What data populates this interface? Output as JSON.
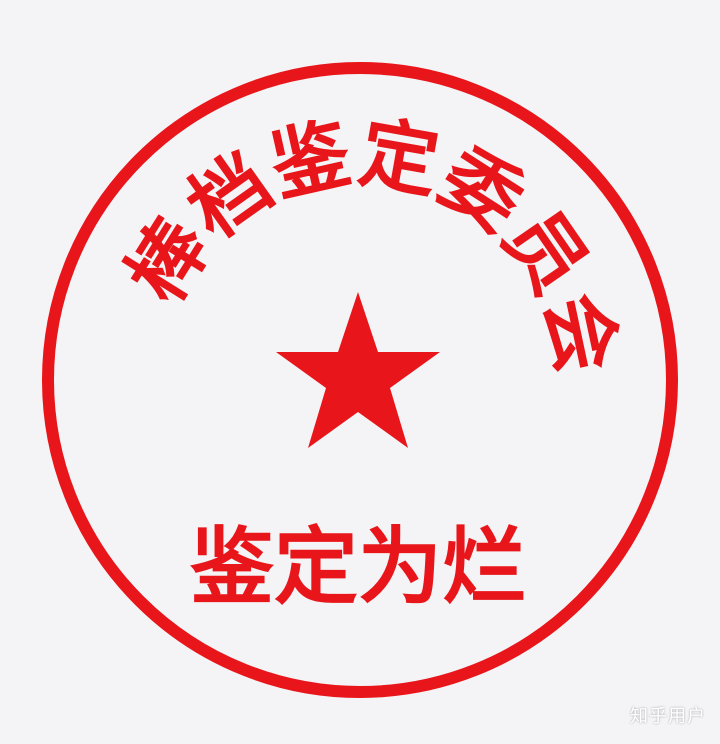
{
  "seal": {
    "arc_text": [
      "棒",
      "档",
      "鉴",
      "定",
      "委",
      "员",
      "会"
    ],
    "bottom_text": "鉴定为烂",
    "center_icon": "star-icon",
    "color": "#e8161b",
    "background": "#f4f3f5"
  },
  "watermark": {
    "text": "知乎用户"
  }
}
